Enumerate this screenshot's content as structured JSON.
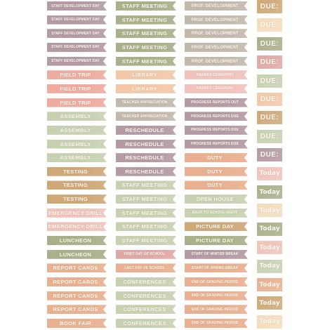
{
  "colors": {
    "mauve": "#b39aa3",
    "sage": "#a9b08a",
    "greige": "#c2b9ad",
    "pink": "#eeab9f",
    "peach": "#f2c8a8",
    "rosy": "#dfa8a6",
    "mint": "#c6d1b1",
    "mustard": "#cfa878",
    "salmon": "#e8b090",
    "cream": "#f4dcbc",
    "blush": "#f0c2bb"
  },
  "col1": [
    {
      "text": "STAFF DEVELOPMENT DAY",
      "color": "mauve",
      "size": "fs-xs"
    },
    {
      "text": "STAFF DEVELOPMENT DAY",
      "color": "mauve",
      "size": "fs-xs"
    },
    {
      "text": "STAFF DEVELOPMENT DAY",
      "color": "mauve",
      "size": "fs-xs"
    },
    {
      "text": "STAFF DEVELOPMENT DAY",
      "color": "mauve",
      "size": "fs-xs"
    },
    {
      "text": "STAFF DEVELOPMENT DAY",
      "color": "mauve",
      "size": "fs-xs"
    },
    {
      "text": "FIELD TRIP",
      "color": "pink",
      "size": "fs-m"
    },
    {
      "text": "FIELD TRIP",
      "color": "pink",
      "size": "fs-m"
    },
    {
      "text": "FIELD TRIP",
      "color": "pink",
      "size": "fs-m"
    },
    {
      "text": "ASSEMBLY",
      "color": "mint",
      "size": "fs-m"
    },
    {
      "text": "ASSEMBLY",
      "color": "mint",
      "size": "fs-m"
    },
    {
      "text": "ASSEMBLY",
      "color": "mint",
      "size": "fs-m"
    },
    {
      "text": "ASSEMBLY",
      "color": "mint",
      "size": "fs-m"
    },
    {
      "text": "TESTING",
      "color": "mustard",
      "size": "fs-m"
    },
    {
      "text": "TESTING",
      "color": "mustard",
      "size": "fs-m"
    },
    {
      "text": "TESTING",
      "color": "mustard",
      "size": "fs-m"
    },
    {
      "text": "EMERGENCY DRILL",
      "color": "blush",
      "size": "fs-m"
    },
    {
      "text": "EMERGENCY DRILL",
      "color": "blush",
      "size": "fs-m"
    },
    {
      "text": "LUNCHEON",
      "color": "sage",
      "size": "fs-m"
    },
    {
      "text": "LUNCHEON",
      "color": "sage",
      "size": "fs-m"
    },
    {
      "text": "REPORT CARDS",
      "color": "salmon",
      "size": "fs-m"
    },
    {
      "text": "REPORT CARDS",
      "color": "salmon",
      "size": "fs-m"
    },
    {
      "text": "REPORT CARDS",
      "color": "salmon",
      "size": "fs-m"
    },
    {
      "text": "REPORT CARDS",
      "color": "salmon",
      "size": "fs-m"
    },
    {
      "text": "BOOK FAIR",
      "color": "salmon",
      "size": "fs-m"
    }
  ],
  "col2": [
    {
      "text": "STAFF MEETING",
      "color": "sage",
      "size": "fs-m"
    },
    {
      "text": "STAFF MEETING",
      "color": "sage",
      "size": "fs-m"
    },
    {
      "text": "STAFF MEETING",
      "color": "sage",
      "size": "fs-m"
    },
    {
      "text": "STAFF MEETING",
      "color": "sage",
      "size": "fs-m"
    },
    {
      "text": "STAFF MEETING",
      "color": "sage",
      "size": "fs-m"
    },
    {
      "text": "LIBRARY",
      "color": "peach",
      "size": "fs-m"
    },
    {
      "text": "LIBRARY",
      "color": "peach",
      "size": "fs-m"
    },
    {
      "text": "TEACHER APPRECIATION",
      "color": "greige",
      "size": "fs-xs"
    },
    {
      "text": "TEACHER APPRECIATION",
      "color": "greige",
      "size": "fs-xs"
    },
    {
      "text": "RESCHEDULE",
      "color": "mauve",
      "size": "fs-m"
    },
    {
      "text": "RESCHEDULE",
      "color": "mauve",
      "size": "fs-m"
    },
    {
      "text": "RESCHEDULE",
      "color": "mauve",
      "size": "fs-m"
    },
    {
      "text": "RESCHEDULE",
      "color": "mauve",
      "size": "fs-m"
    },
    {
      "text": "STAFF MEETING",
      "color": "mint",
      "size": "fs-m"
    },
    {
      "text": "STAFF MEETING",
      "color": "mint",
      "size": "fs-m"
    },
    {
      "text": "STAFF MEETING",
      "color": "mint",
      "size": "fs-m"
    },
    {
      "text": "STAFF MEETING",
      "color": "mint",
      "size": "fs-m"
    },
    {
      "text": "STAFF MEETING",
      "color": "mint",
      "size": "fs-m"
    },
    {
      "text": "FIRST DAY OF SCHOOL",
      "color": "rosy",
      "size": "fs-xs"
    },
    {
      "text": "LAST DAY OF SCHOOL",
      "color": "salmon",
      "size": "fs-xs"
    },
    {
      "text": "CONFERENCES",
      "color": "mint",
      "size": "fs-m"
    },
    {
      "text": "CONFERENCES",
      "color": "mint",
      "size": "fs-m"
    },
    {
      "text": "CONFERENCES",
      "color": "mint",
      "size": "fs-m"
    },
    {
      "text": "CONFERENCES",
      "color": "mint",
      "size": "fs-m"
    }
  ],
  "col3": [
    {
      "text": "PROF. DEVELOPMENT",
      "color": "greige",
      "size": "fs-s"
    },
    {
      "text": "PROF. DEVELOPMENT",
      "color": "greige",
      "size": "fs-s"
    },
    {
      "text": "PROF. DEVELOPMENT",
      "color": "greige",
      "size": "fs-s"
    },
    {
      "text": "PROF. DEVELOPMENT",
      "color": "greige",
      "size": "fs-s"
    },
    {
      "text": "PROF. DEVELOPMENT",
      "color": "greige",
      "size": "fs-s"
    },
    {
      "text": "AWARDS CEREMONY",
      "color": "blush",
      "size": "fs-xs"
    },
    {
      "text": "AWARDS CEREMONY",
      "color": "blush",
      "size": "fs-xs"
    },
    {
      "text": "PROGRESS REPORTS OUT",
      "color": "mauve",
      "size": "fs-xs"
    },
    {
      "text": "PROGRESS REPORTS DUE",
      "color": "mauve",
      "size": "fs-xs"
    },
    {
      "text": "PROGRESS REPORTS DUE",
      "color": "mauve",
      "size": "fs-xs"
    },
    {
      "text": "PROGRESS REPORTS DUE",
      "color": "mauve",
      "size": "fs-xs"
    },
    {
      "text": "DUTY",
      "color": "salmon",
      "size": "fs-m"
    },
    {
      "text": "DUTY",
      "color": "salmon",
      "size": "fs-m"
    },
    {
      "text": "DUTY",
      "color": "salmon",
      "size": "fs-m"
    },
    {
      "text": "OPEN HOUSE",
      "color": "mint",
      "size": "fs-m"
    },
    {
      "text": "BACK TO SCHOOL NIGHT",
      "color": "mint",
      "size": "fs-xs"
    },
    {
      "text": "PICTURE DAY",
      "color": "mustard",
      "size": "fs-m"
    },
    {
      "text": "PICTURE DAY",
      "color": "sage",
      "size": "fs-m"
    },
    {
      "text": "START OF WINTER BREAK",
      "color": "mauve",
      "size": "fs-xs"
    },
    {
      "text": "START OF SPRING BREAK",
      "color": "salmon",
      "size": "fs-xs"
    },
    {
      "text": "END OF GRADING PERIOD",
      "color": "salmon",
      "size": "fs-xs"
    },
    {
      "text": "END OF GRADING PERIOD",
      "color": "salmon",
      "size": "fs-xs"
    },
    {
      "text": "END OF GRADING PERIOD",
      "color": "salmon",
      "size": "fs-xs"
    },
    {
      "text": "END OF GRADING PERIOD",
      "color": "salmon",
      "size": "fs-xs"
    }
  ],
  "col4": [
    {
      "text": "DUE:",
      "color": "mustard",
      "kind": "due"
    },
    {
      "text": "DUE:",
      "color": "cream",
      "kind": "due"
    },
    {
      "text": "DUE:",
      "color": "sage",
      "kind": "due"
    },
    {
      "text": "DUE:",
      "color": "rosy",
      "kind": "due"
    },
    {
      "text": "DUE:",
      "color": "mint",
      "kind": "due"
    },
    {
      "text": "DUE:",
      "color": "peach",
      "kind": "due"
    },
    {
      "text": "DUE:",
      "color": "mustard",
      "kind": "due"
    },
    {
      "text": "DUE:",
      "color": "mint",
      "kind": "due"
    },
    {
      "text": "DUE:",
      "color": "mauve",
      "kind": "due"
    },
    {
      "text": "Today",
      "color": "blush",
      "kind": "today"
    },
    {
      "text": "Today",
      "color": "sage",
      "kind": "today"
    },
    {
      "text": "Today",
      "color": "cream",
      "kind": "today"
    },
    {
      "text": "Today",
      "color": "sage",
      "kind": "today"
    },
    {
      "text": "Today",
      "color": "blush",
      "kind": "today"
    },
    {
      "text": "Today",
      "color": "mint",
      "kind": "today"
    },
    {
      "text": "Today",
      "color": "salmon",
      "kind": "today"
    },
    {
      "text": "Today",
      "color": "mustard",
      "kind": "today"
    },
    {
      "text": "Today",
      "color": "cream",
      "kind": "today"
    }
  ]
}
